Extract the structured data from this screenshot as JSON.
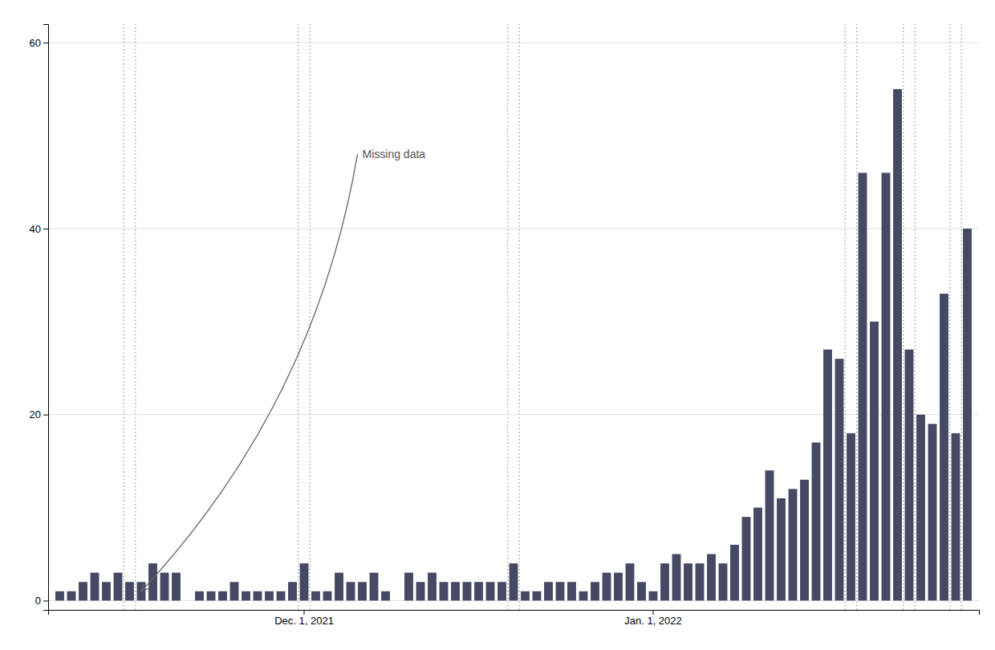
{
  "chart_data": {
    "type": "bar",
    "categories": [
      null,
      null,
      null,
      null,
      null,
      null,
      null,
      null,
      null,
      null,
      null,
      null,
      null,
      null,
      null,
      null,
      null,
      null,
      null,
      null,
      null,
      "Dec. 1, 2021",
      null,
      null,
      null,
      null,
      null,
      null,
      null,
      null,
      null,
      null,
      null,
      null,
      null,
      null,
      null,
      null,
      null,
      null,
      null,
      null,
      null,
      null,
      null,
      null,
      null,
      null,
      null,
      null,
      null,
      "Jan. 1, 2022",
      null,
      null,
      null,
      null,
      null,
      null,
      null,
      null,
      null,
      null,
      null,
      null,
      null,
      null,
      null,
      null,
      null,
      null,
      null,
      null,
      null,
      null,
      null,
      null,
      null,
      null,
      null
    ],
    "values": [
      1,
      1,
      2,
      3,
      2,
      3,
      2,
      2,
      4,
      3,
      3,
      0,
      1,
      1,
      1,
      2,
      1,
      1,
      1,
      1,
      2,
      4,
      1,
      1,
      3,
      2,
      2,
      3,
      1,
      0,
      3,
      2,
      3,
      2,
      2,
      2,
      2,
      2,
      2,
      4,
      1,
      1,
      2,
      2,
      2,
      1,
      2,
      3,
      3,
      4,
      2,
      1,
      4,
      5,
      4,
      4,
      5,
      4,
      6,
      9,
      10,
      14,
      11,
      12,
      13,
      17,
      27,
      26,
      18,
      46,
      30,
      46,
      55,
      27,
      20,
      19,
      33,
      18,
      40
    ],
    "color": "#454963",
    "gaps": [
      [
        6,
        7
      ],
      [
        21,
        22
      ],
      [
        39,
        40
      ],
      [
        68,
        69
      ],
      [
        73,
        74
      ],
      [
        77,
        78
      ]
    ],
    "annotations": [
      {
        "text": "Missing data",
        "x": 26,
        "y": 48,
        "arrow_x": 7.0,
        "arrow_y": 1.0
      }
    ],
    "ylim": [
      -1,
      62
    ],
    "yticks": [
      0,
      20,
      40,
      60
    ],
    "grid": true
  }
}
